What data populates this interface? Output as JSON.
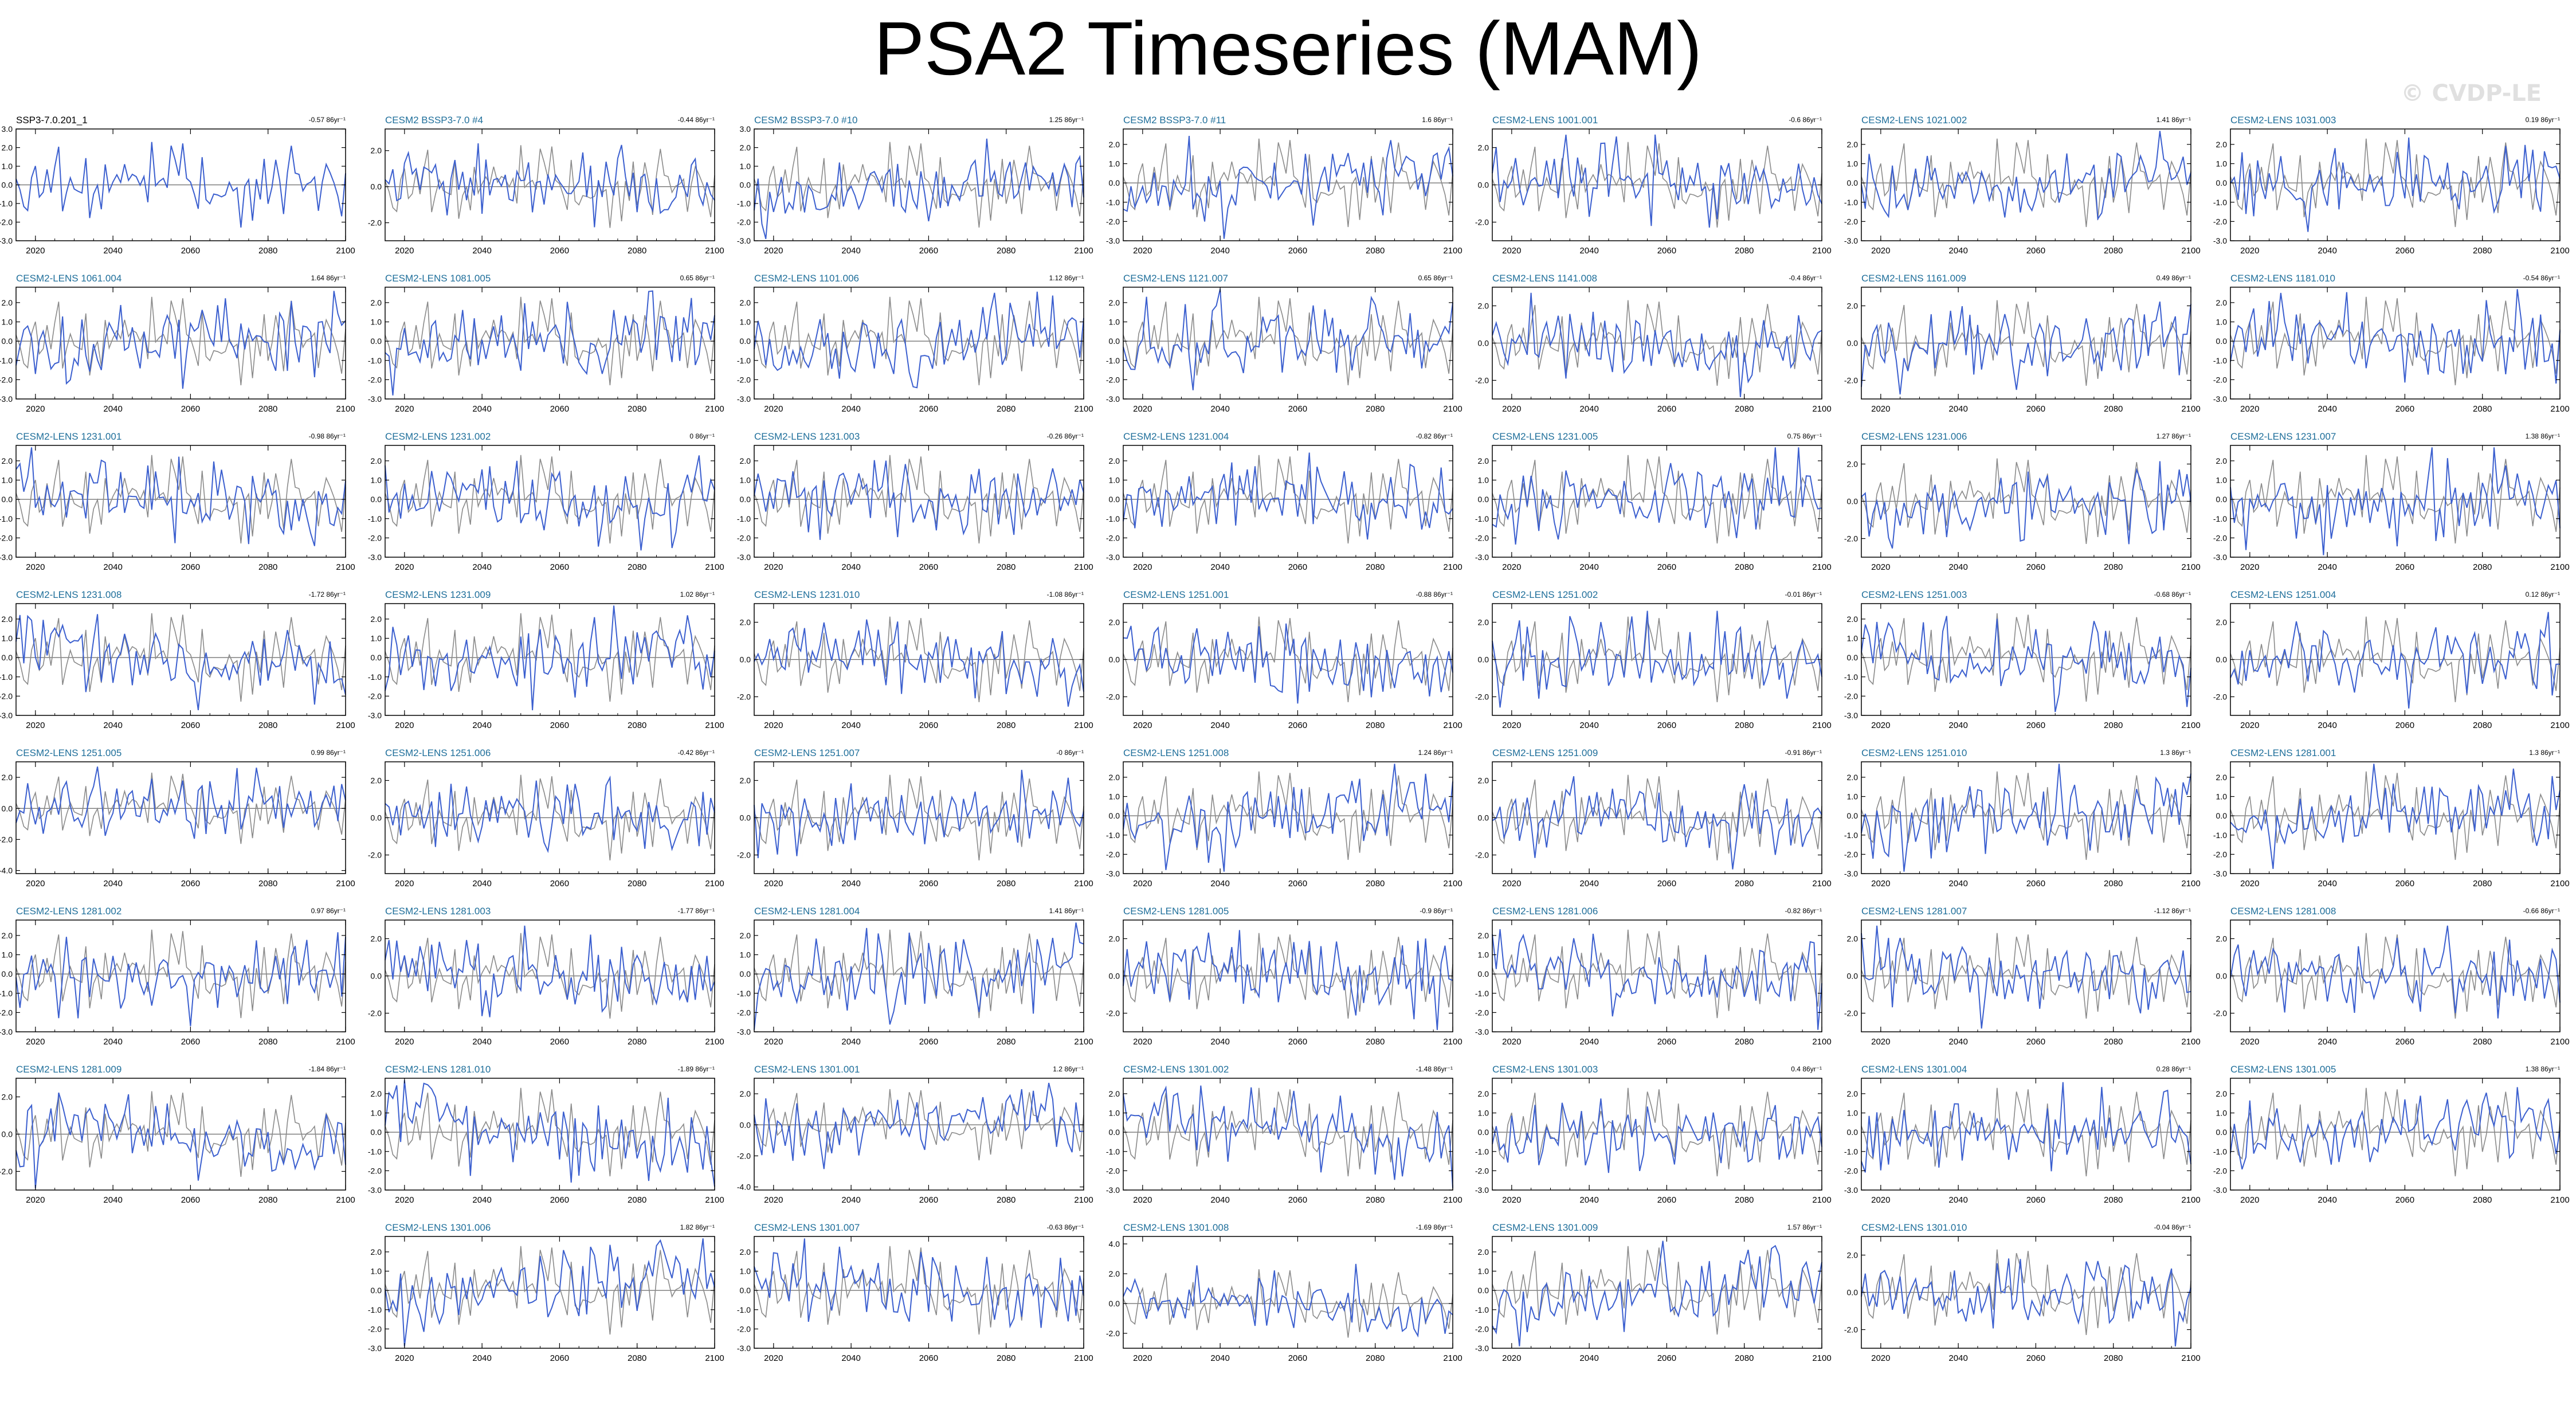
{
  "title": "PSA2 Timeseries (MAM)",
  "watermark": "© CVDP-LE",
  "colors": {
    "ensemble": "#3b5fcf",
    "observed": "#8a8a8a",
    "panel_label": "#1e6e9a",
    "obs_label": "#000000"
  },
  "chart_data": {
    "type": "line",
    "x_range": [
      2015,
      2100
    ],
    "xticks": [
      2020,
      2040,
      2060,
      2080,
      2100
    ],
    "panels": [
      {
        "row": 0,
        "col": 0,
        "name": "SSP3-7.0.201_1",
        "trend": "-0.57 86yr⁻¹",
        "yticks": [
          -3.0,
          -2.0,
          -1.0,
          0.0,
          1.0,
          2.0,
          3.0
        ],
        "ylim": [
          -3,
          3
        ],
        "obs": true
      },
      {
        "row": 0,
        "col": 1,
        "name": "CESM2 BSSP3-7.0 #4",
        "trend": "-0.44 86yr⁻¹",
        "yticks": [
          -2.0,
          0.0,
          2.0
        ],
        "ylim": [
          -3,
          3.2
        ]
      },
      {
        "row": 0,
        "col": 2,
        "name": "CESM2 BSSP3-7.0 #10",
        "trend": "1.25 86yr⁻¹",
        "yticks": [
          -3.0,
          -2.0,
          -1.0,
          0.0,
          1.0,
          2.0,
          3.0
        ],
        "ylim": [
          -3,
          3
        ]
      },
      {
        "row": 0,
        "col": 3,
        "name": "CESM2 BSSP3-7.0 #11",
        "trend": "1.6 86yr⁻¹",
        "yticks": [
          -3.0,
          -2.0,
          -1.0,
          0.0,
          1.0,
          2.0
        ],
        "ylim": [
          -3,
          2.8
        ]
      },
      {
        "row": 0,
        "col": 4,
        "name": "CESM2-LENS 1001.001",
        "trend": "-0.6 86yr⁻¹",
        "yticks": [
          -2.0,
          0.0,
          2.0
        ],
        "ylim": [
          -3,
          3
        ]
      },
      {
        "row": 0,
        "col": 5,
        "name": "CESM2-LENS 1021.002",
        "trend": "1.41 86yr⁻¹",
        "yticks": [
          -3.0,
          -2.0,
          -1.0,
          0.0,
          1.0,
          2.0
        ],
        "ylim": [
          -3,
          2.8
        ]
      },
      {
        "row": 0,
        "col": 6,
        "name": "CESM2-LENS 1031.003",
        "trend": "0.19 86yr⁻¹",
        "yticks": [
          -3.0,
          -2.0,
          -1.0,
          0.0,
          1.0,
          2.0
        ],
        "ylim": [
          -3,
          2.8
        ]
      },
      {
        "row": 1,
        "col": 0,
        "name": "CESM2-LENS 1061.004",
        "trend": "1.64 86yr⁻¹",
        "yticks": [
          -3.0,
          -2.0,
          -1.0,
          0.0,
          1.0,
          2.0
        ],
        "ylim": [
          -3,
          2.8
        ]
      },
      {
        "row": 1,
        "col": 1,
        "name": "CESM2-LENS 1081.005",
        "trend": "0.65 86yr⁻¹",
        "yticks": [
          -3.0,
          -2.0,
          -1.0,
          0.0,
          1.0,
          2.0
        ],
        "ylim": [
          -3,
          2.8
        ]
      },
      {
        "row": 1,
        "col": 2,
        "name": "CESM2-LENS 1101.006",
        "trend": "1.12 86yr⁻¹",
        "yticks": [
          -3.0,
          -2.0,
          -1.0,
          0.0,
          1.0,
          2.0
        ],
        "ylim": [
          -3,
          2.8
        ]
      },
      {
        "row": 1,
        "col": 3,
        "name": "CESM2-LENS 1121.007",
        "trend": "0.65 86yr⁻¹",
        "yticks": [
          -3.0,
          -2.0,
          -1.0,
          0.0,
          1.0,
          2.0
        ],
        "ylim": [
          -3,
          2.8
        ]
      },
      {
        "row": 1,
        "col": 4,
        "name": "CESM2-LENS 1141.008",
        "trend": "-0.4 86yr⁻¹",
        "yticks": [
          -2.0,
          0.0,
          2.0
        ],
        "ylim": [
          -3,
          3
        ]
      },
      {
        "row": 1,
        "col": 5,
        "name": "CESM2-LENS 1161.009",
        "trend": "0.49 86yr⁻¹",
        "yticks": [
          -2.0,
          0.0,
          2.0
        ],
        "ylim": [
          -3,
          3
        ]
      },
      {
        "row": 1,
        "col": 6,
        "name": "CESM2-LENS 1181.010",
        "trend": "-0.54 86yr⁻¹",
        "yticks": [
          -3.0,
          -2.0,
          -1.0,
          0.0,
          1.0,
          2.0
        ],
        "ylim": [
          -3,
          2.8
        ]
      },
      {
        "row": 2,
        "col": 0,
        "name": "CESM2-LENS 1231.001",
        "trend": "-0.98 86yr⁻¹",
        "yticks": [
          -3.0,
          -2.0,
          -1.0,
          0.0,
          1.0,
          2.0
        ],
        "ylim": [
          -3,
          2.8
        ]
      },
      {
        "row": 2,
        "col": 1,
        "name": "CESM2-LENS 1231.002",
        "trend": "0 86yr⁻¹",
        "yticks": [
          -3.0,
          -2.0,
          -1.0,
          0.0,
          1.0,
          2.0
        ],
        "ylim": [
          -3,
          2.8
        ]
      },
      {
        "row": 2,
        "col": 2,
        "name": "CESM2-LENS 1231.003",
        "trend": "-0.26 86yr⁻¹",
        "yticks": [
          -3.0,
          -2.0,
          -1.0,
          0.0,
          1.0,
          2.0
        ],
        "ylim": [
          -3,
          2.8
        ]
      },
      {
        "row": 2,
        "col": 3,
        "name": "CESM2-LENS 1231.004",
        "trend": "-0.82 86yr⁻¹",
        "yticks": [
          -3.0,
          -2.0,
          -1.0,
          0.0,
          1.0,
          2.0
        ],
        "ylim": [
          -3,
          2.8
        ]
      },
      {
        "row": 2,
        "col": 4,
        "name": "CESM2-LENS 1231.005",
        "trend": "0.75 86yr⁻¹",
        "yticks": [
          -3.0,
          -2.0,
          -1.0,
          0.0,
          1.0,
          2.0
        ],
        "ylim": [
          -3,
          2.8
        ]
      },
      {
        "row": 2,
        "col": 5,
        "name": "CESM2-LENS 1231.006",
        "trend": "1.27 86yr⁻¹",
        "yticks": [
          -2.0,
          0.0,
          2.0
        ],
        "ylim": [
          -3,
          3
        ]
      },
      {
        "row": 2,
        "col": 6,
        "name": "CESM2-LENS 1231.007",
        "trend": "1.38 86yr⁻¹",
        "yticks": [
          -3.0,
          -2.0,
          -1.0,
          0.0,
          1.0,
          2.0
        ],
        "ylim": [
          -3,
          2.8
        ]
      },
      {
        "row": 3,
        "col": 0,
        "name": "CESM2-LENS 1231.008",
        "trend": "-1.72 86yr⁻¹",
        "yticks": [
          -3.0,
          -2.0,
          -1.0,
          0.0,
          1.0,
          2.0
        ],
        "ylim": [
          -3,
          2.8
        ]
      },
      {
        "row": 3,
        "col": 1,
        "name": "CESM2-LENS 1231.009",
        "trend": "1.02 86yr⁻¹",
        "yticks": [
          -3.0,
          -2.0,
          -1.0,
          0.0,
          1.0,
          2.0
        ],
        "ylim": [
          -3,
          2.8
        ]
      },
      {
        "row": 3,
        "col": 2,
        "name": "CESM2-LENS 1231.010",
        "trend": "-1.08 86yr⁻¹",
        "yticks": [
          -2.0,
          0.0,
          2.0
        ],
        "ylim": [
          -3,
          3
        ]
      },
      {
        "row": 3,
        "col": 3,
        "name": "CESM2-LENS 1251.001",
        "trend": "-0.88 86yr⁻¹",
        "yticks": [
          -2.0,
          0.0,
          2.0
        ],
        "ylim": [
          -3,
          3
        ]
      },
      {
        "row": 3,
        "col": 4,
        "name": "CESM2-LENS 1251.002",
        "trend": "-0.01 86yr⁻¹",
        "yticks": [
          -2.0,
          0.0,
          2.0
        ],
        "ylim": [
          -3,
          3
        ]
      },
      {
        "row": 3,
        "col": 5,
        "name": "CESM2-LENS 1251.003",
        "trend": "-0.68 86yr⁻¹",
        "yticks": [
          -3.0,
          -2.0,
          -1.0,
          0.0,
          1.0,
          2.0
        ],
        "ylim": [
          -3,
          2.8
        ]
      },
      {
        "row": 3,
        "col": 6,
        "name": "CESM2-LENS 1251.004",
        "trend": "0.12 86yr⁻¹",
        "yticks": [
          -2.0,
          0.0,
          2.0
        ],
        "ylim": [
          -3,
          3
        ]
      },
      {
        "row": 4,
        "col": 0,
        "name": "CESM2-LENS 1251.005",
        "trend": "0.99 86yr⁻¹",
        "yticks": [
          -4.0,
          -2.0,
          0.0,
          2.0
        ],
        "ylim": [
          -4.2,
          3
        ]
      },
      {
        "row": 4,
        "col": 1,
        "name": "CESM2-LENS 1251.006",
        "trend": "-0.42 86yr⁻¹",
        "yticks": [
          -2.0,
          0.0,
          2.0
        ],
        "ylim": [
          -3,
          3
        ]
      },
      {
        "row": 4,
        "col": 2,
        "name": "CESM2-LENS 1251.007",
        "trend": "-0 86yr⁻¹",
        "yticks": [
          -2.0,
          0.0,
          2.0
        ],
        "ylim": [
          -3,
          3
        ]
      },
      {
        "row": 4,
        "col": 3,
        "name": "CESM2-LENS 1251.008",
        "trend": "1.24 86yr⁻¹",
        "yticks": [
          -3.0,
          -2.0,
          -1.0,
          0.0,
          1.0,
          2.0
        ],
        "ylim": [
          -3,
          2.8
        ]
      },
      {
        "row": 4,
        "col": 4,
        "name": "CESM2-LENS 1251.009",
        "trend": "-0.91 86yr⁻¹",
        "yticks": [
          -2.0,
          0.0,
          2.0
        ],
        "ylim": [
          -3,
          3
        ]
      },
      {
        "row": 4,
        "col": 5,
        "name": "CESM2-LENS 1251.010",
        "trend": "1.3 86yr⁻¹",
        "yticks": [
          -3.0,
          -2.0,
          -1.0,
          0.0,
          1.0,
          2.0
        ],
        "ylim": [
          -3,
          2.8
        ]
      },
      {
        "row": 4,
        "col": 6,
        "name": "CESM2-LENS 1281.001",
        "trend": "1.3 86yr⁻¹",
        "yticks": [
          -3.0,
          -2.0,
          -1.0,
          0.0,
          1.0,
          2.0
        ],
        "ylim": [
          -3,
          2.8
        ]
      },
      {
        "row": 5,
        "col": 0,
        "name": "CESM2-LENS 1281.002",
        "trend": "0.97 86yr⁻¹",
        "yticks": [
          -3.0,
          -2.0,
          -1.0,
          0.0,
          1.0,
          2.0
        ],
        "ylim": [
          -3,
          2.8
        ]
      },
      {
        "row": 5,
        "col": 1,
        "name": "CESM2-LENS 1281.003",
        "trend": "-1.77 86yr⁻¹",
        "yticks": [
          -2.0,
          0.0,
          2.0
        ],
        "ylim": [
          -3,
          3
        ]
      },
      {
        "row": 5,
        "col": 2,
        "name": "CESM2-LENS 1281.004",
        "trend": "1.41 86yr⁻¹",
        "yticks": [
          -3.0,
          -2.0,
          -1.0,
          0.0,
          1.0,
          2.0
        ],
        "ylim": [
          -3,
          2.8
        ]
      },
      {
        "row": 5,
        "col": 3,
        "name": "CESM2-LENS 1281.005",
        "trend": "-0.9 86yr⁻¹",
        "yticks": [
          -2.0,
          0.0,
          2.0
        ],
        "ylim": [
          -3,
          3
        ]
      },
      {
        "row": 5,
        "col": 4,
        "name": "CESM2-LENS 1281.006",
        "trend": "-0.82 86yr⁻¹",
        "yticks": [
          -3.0,
          -2.0,
          -1.0,
          0.0,
          1.0,
          2.0
        ],
        "ylim": [
          -3,
          2.8
        ]
      },
      {
        "row": 5,
        "col": 5,
        "name": "CESM2-LENS 1281.007",
        "trend": "-1.12 86yr⁻¹",
        "yticks": [
          -2.0,
          0.0,
          2.0
        ],
        "ylim": [
          -3,
          3
        ]
      },
      {
        "row": 5,
        "col": 6,
        "name": "CESM2-LENS 1281.008",
        "trend": "-0.66 86yr⁻¹",
        "yticks": [
          -2.0,
          0.0,
          2.0
        ],
        "ylim": [
          -3,
          3
        ]
      },
      {
        "row": 6,
        "col": 0,
        "name": "CESM2-LENS 1281.009",
        "trend": "-1.84 86yr⁻¹",
        "yticks": [
          -2.0,
          0.0,
          2.0
        ],
        "ylim": [
          -3,
          3
        ]
      },
      {
        "row": 6,
        "col": 1,
        "name": "CESM2-LENS 1281.010",
        "trend": "-1.89 86yr⁻¹",
        "yticks": [
          -3.0,
          -2.0,
          -1.0,
          0.0,
          1.0,
          2.0
        ],
        "ylim": [
          -3,
          2.8
        ]
      },
      {
        "row": 6,
        "col": 2,
        "name": "CESM2-LENS 1301.001",
        "trend": "1.2 86yr⁻¹",
        "yticks": [
          -4.0,
          -2.0,
          0.0,
          2.0
        ],
        "ylim": [
          -4.2,
          3
        ]
      },
      {
        "row": 6,
        "col": 3,
        "name": "CESM2-LENS 1301.002",
        "trend": "-1.48 86yr⁻¹",
        "yticks": [
          -3.0,
          -2.0,
          -1.0,
          0.0,
          1.0,
          2.0
        ],
        "ylim": [
          -3,
          2.8
        ]
      },
      {
        "row": 6,
        "col": 4,
        "name": "CESM2-LENS 1301.003",
        "trend": "0.4 86yr⁻¹",
        "yticks": [
          -3.0,
          -2.0,
          -1.0,
          0.0,
          1.0,
          2.0
        ],
        "ylim": [
          -3,
          2.8
        ]
      },
      {
        "row": 6,
        "col": 5,
        "name": "CESM2-LENS 1301.004",
        "trend": "0.28 86yr⁻¹",
        "yticks": [
          -3.0,
          -2.0,
          -1.0,
          0.0,
          1.0,
          2.0
        ],
        "ylim": [
          -3,
          2.8
        ]
      },
      {
        "row": 6,
        "col": 6,
        "name": "CESM2-LENS 1301.005",
        "trend": "1.38 86yr⁻¹",
        "yticks": [
          -3.0,
          -2.0,
          -1.0,
          0.0,
          1.0,
          2.0
        ],
        "ylim": [
          -3,
          2.8
        ]
      },
      {
        "row": 7,
        "col": 1,
        "name": "CESM2-LENS 1301.006",
        "trend": "1.82 86yr⁻¹",
        "yticks": [
          -3.0,
          -2.0,
          -1.0,
          0.0,
          1.0,
          2.0
        ],
        "ylim": [
          -3,
          2.8
        ]
      },
      {
        "row": 7,
        "col": 2,
        "name": "CESM2-LENS 1301.007",
        "trend": "-0.63 86yr⁻¹",
        "yticks": [
          -3.0,
          -2.0,
          -1.0,
          0.0,
          1.0,
          2.0
        ],
        "ylim": [
          -3,
          2.8
        ]
      },
      {
        "row": 7,
        "col": 3,
        "name": "CESM2-LENS 1301.008",
        "trend": "-1.69 86yr⁻¹",
        "yticks": [
          -2.0,
          0.0,
          2.0,
          4.0
        ],
        "ylim": [
          -3,
          4.5
        ]
      },
      {
        "row": 7,
        "col": 4,
        "name": "CESM2-LENS 1301.009",
        "trend": "1.57 86yr⁻¹",
        "yticks": [
          -3.0,
          -2.0,
          -1.0,
          0.0,
          1.0,
          2.0
        ],
        "ylim": [
          -3,
          2.8
        ]
      },
      {
        "row": 7,
        "col": 5,
        "name": "CESM2-LENS 1301.010",
        "trend": "-0.04 86yr⁻¹",
        "yticks": [
          -2.0,
          0.0,
          2.0
        ],
        "ylim": [
          -3,
          3
        ]
      }
    ]
  }
}
